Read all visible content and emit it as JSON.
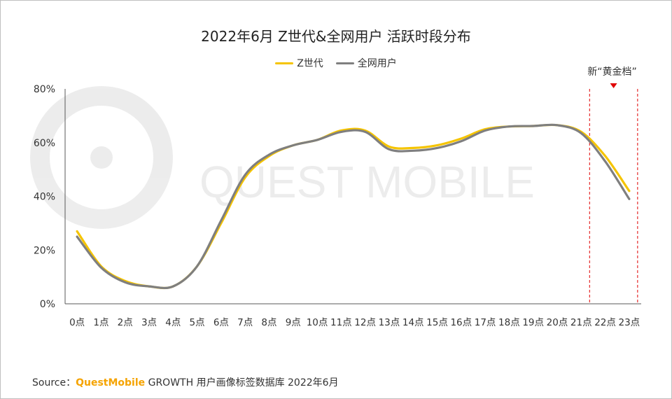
{
  "chart_data": {
    "type": "line",
    "title": "2022年6月 Z世代&全网用户 活跃时段分布",
    "categories": [
      "0点",
      "1点",
      "2点",
      "3点",
      "4点",
      "5点",
      "6点",
      "7点",
      "8点",
      "9点",
      "10点",
      "11点",
      "12点",
      "13点",
      "14点",
      "15点",
      "16点",
      "17点",
      "18点",
      "19点",
      "20点",
      "21点",
      "22点",
      "23点"
    ],
    "series": [
      {
        "name": "Z世代",
        "color": "#f5c400",
        "values": [
          27,
          14,
          8.5,
          6.5,
          6.5,
          14,
          30,
          47,
          55,
          59,
          61,
          64.5,
          64.5,
          58.5,
          58,
          59,
          61.5,
          65,
          66,
          66.2,
          66.5,
          64,
          55,
          42
        ]
      },
      {
        "name": "全网用户",
        "color": "#7f7f7f",
        "values": [
          25,
          13.5,
          8,
          6.5,
          6.5,
          14,
          31,
          48,
          55.5,
          59,
          61,
          64,
          64,
          57.5,
          57,
          58,
          60.5,
          64.5,
          66,
          66.2,
          66.5,
          63.5,
          53,
          39
        ]
      }
    ],
    "ylim": [
      0,
      80
    ],
    "yticks": [
      "0%",
      "20%",
      "40%",
      "60%",
      "80%"
    ],
    "legend_position": "top-center",
    "grid": false,
    "annotation": {
      "text": "新“黄金档”",
      "start_category": "21点",
      "end_category": "23点",
      "marker_color": "#e00000",
      "line_color": "#e00000"
    }
  },
  "watermark": "QUEST MOBILE",
  "source": {
    "label": "Source：",
    "brand": "QuestMobile",
    "text": "GROWTH 用户画像标签数据库 2022年6月"
  }
}
